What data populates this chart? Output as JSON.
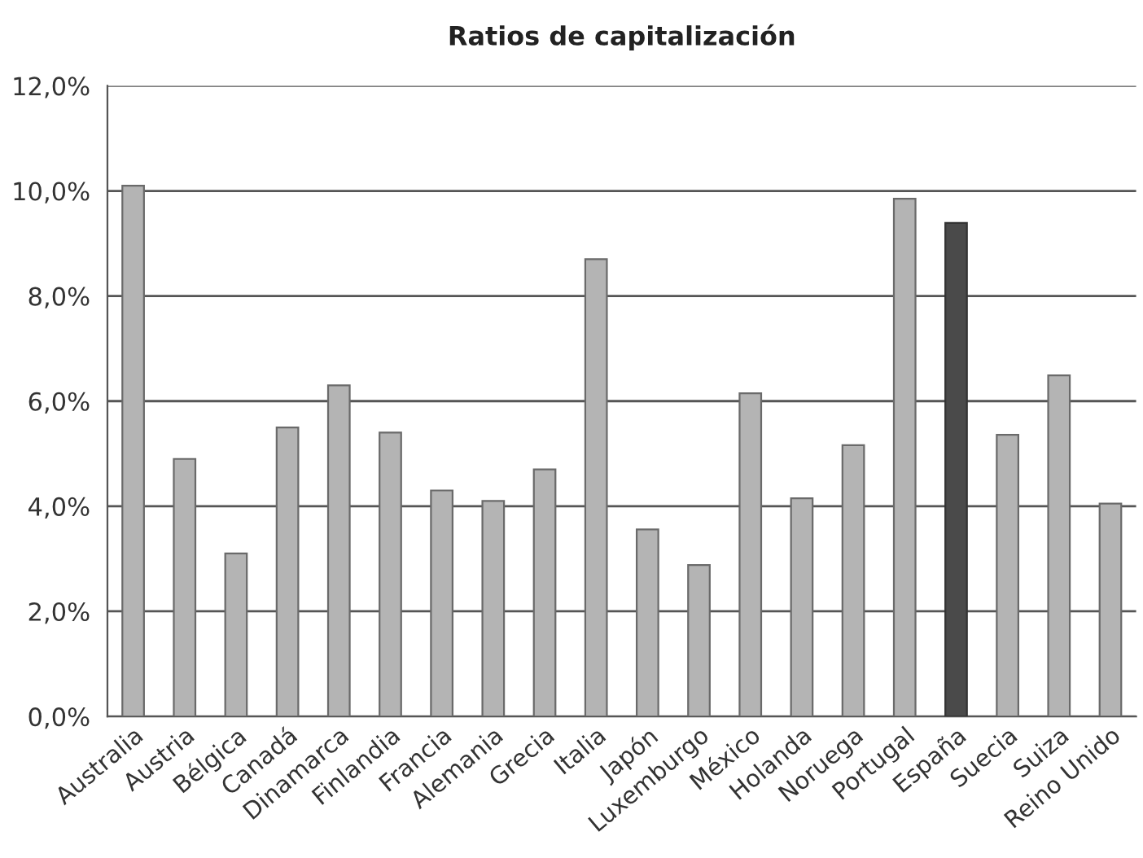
{
  "chart_data": {
    "type": "bar",
    "title": "Ratios de capitalización",
    "categories": [
      "Australia",
      "Austria",
      "Bélgica",
      "Canadá",
      "Dinamarca",
      "Finlandia",
      "Francia",
      "Alemania",
      "Grecia",
      "Italia",
      "Japón",
      "Luxemburgo",
      "México",
      "Holanda",
      "Noruega",
      "Portugal",
      "España",
      "Suecia",
      "Suiza",
      "Reino Unido"
    ],
    "values": [
      10.1,
      4.9,
      3.1,
      5.5,
      6.3,
      5.4,
      4.3,
      4.1,
      4.7,
      8.7,
      3.56,
      2.88,
      6.15,
      4.15,
      5.16,
      9.85,
      9.39,
      5.36,
      6.49,
      4.05
    ],
    "colors": [
      "#b4b4b4",
      "#b4b4b4",
      "#b4b4b4",
      "#b4b4b4",
      "#b4b4b4",
      "#b4b4b4",
      "#b4b4b4",
      "#b4b4b4",
      "#b4b4b4",
      "#b4b4b4",
      "#b4b4b4",
      "#b4b4b4",
      "#b4b4b4",
      "#b4b4b4",
      "#b4b4b4",
      "#b4b4b4",
      "#4a4a4a",
      "#b4b4b4",
      "#b4b4b4",
      "#b4b4b4"
    ],
    "ylim": [
      0,
      12
    ],
    "yticks": [
      {
        "value": 0,
        "label": "0,0%"
      },
      {
        "value": 2,
        "label": "2,0%"
      },
      {
        "value": 4,
        "label": "4,0%"
      },
      {
        "value": 6,
        "label": "6,0%"
      },
      {
        "value": 8,
        "label": "8,0%"
      },
      {
        "value": 10,
        "label": "10,0%"
      },
      {
        "value": 12,
        "label": "12,0%"
      }
    ],
    "grid": "y",
    "legend": false
  }
}
